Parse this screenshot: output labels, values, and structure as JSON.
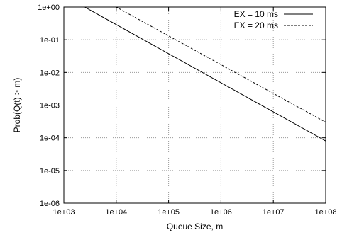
{
  "chart_data": {
    "type": "line",
    "xlabel": "Queue Size, m",
    "ylabel": "Prob(Q(t) > m)",
    "xscale": "log",
    "yscale": "log",
    "xlim": [
      1000,
      100000000
    ],
    "ylim": [
      1e-06,
      1
    ],
    "x_ticks": [
      1000,
      10000,
      100000,
      1000000,
      10000000,
      100000000
    ],
    "x_tick_labels": [
      "1e+03",
      "1e+04",
      "1e+05",
      "1e+06",
      "1e+07",
      "1e+08"
    ],
    "y_ticks": [
      1e-06,
      1e-05,
      0.0001,
      0.001,
      0.01,
      0.1,
      1
    ],
    "y_tick_labels": [
      "1e-06",
      "1e-05",
      "1e-04",
      "1e-03",
      "1e-02",
      "1e-01",
      "1e+00"
    ],
    "grid": true,
    "legend_position": "top-right",
    "series": [
      {
        "name": "EX = 10 ms",
        "style": "solid",
        "color": "#000000",
        "points": [
          [
            2500,
            1
          ],
          [
            100000000,
            8e-05
          ]
        ]
      },
      {
        "name": "EX = 20 ms",
        "style": "dashed",
        "color": "#000000",
        "points": [
          [
            10000,
            1
          ],
          [
            100000000,
            0.0003
          ]
        ]
      }
    ]
  }
}
